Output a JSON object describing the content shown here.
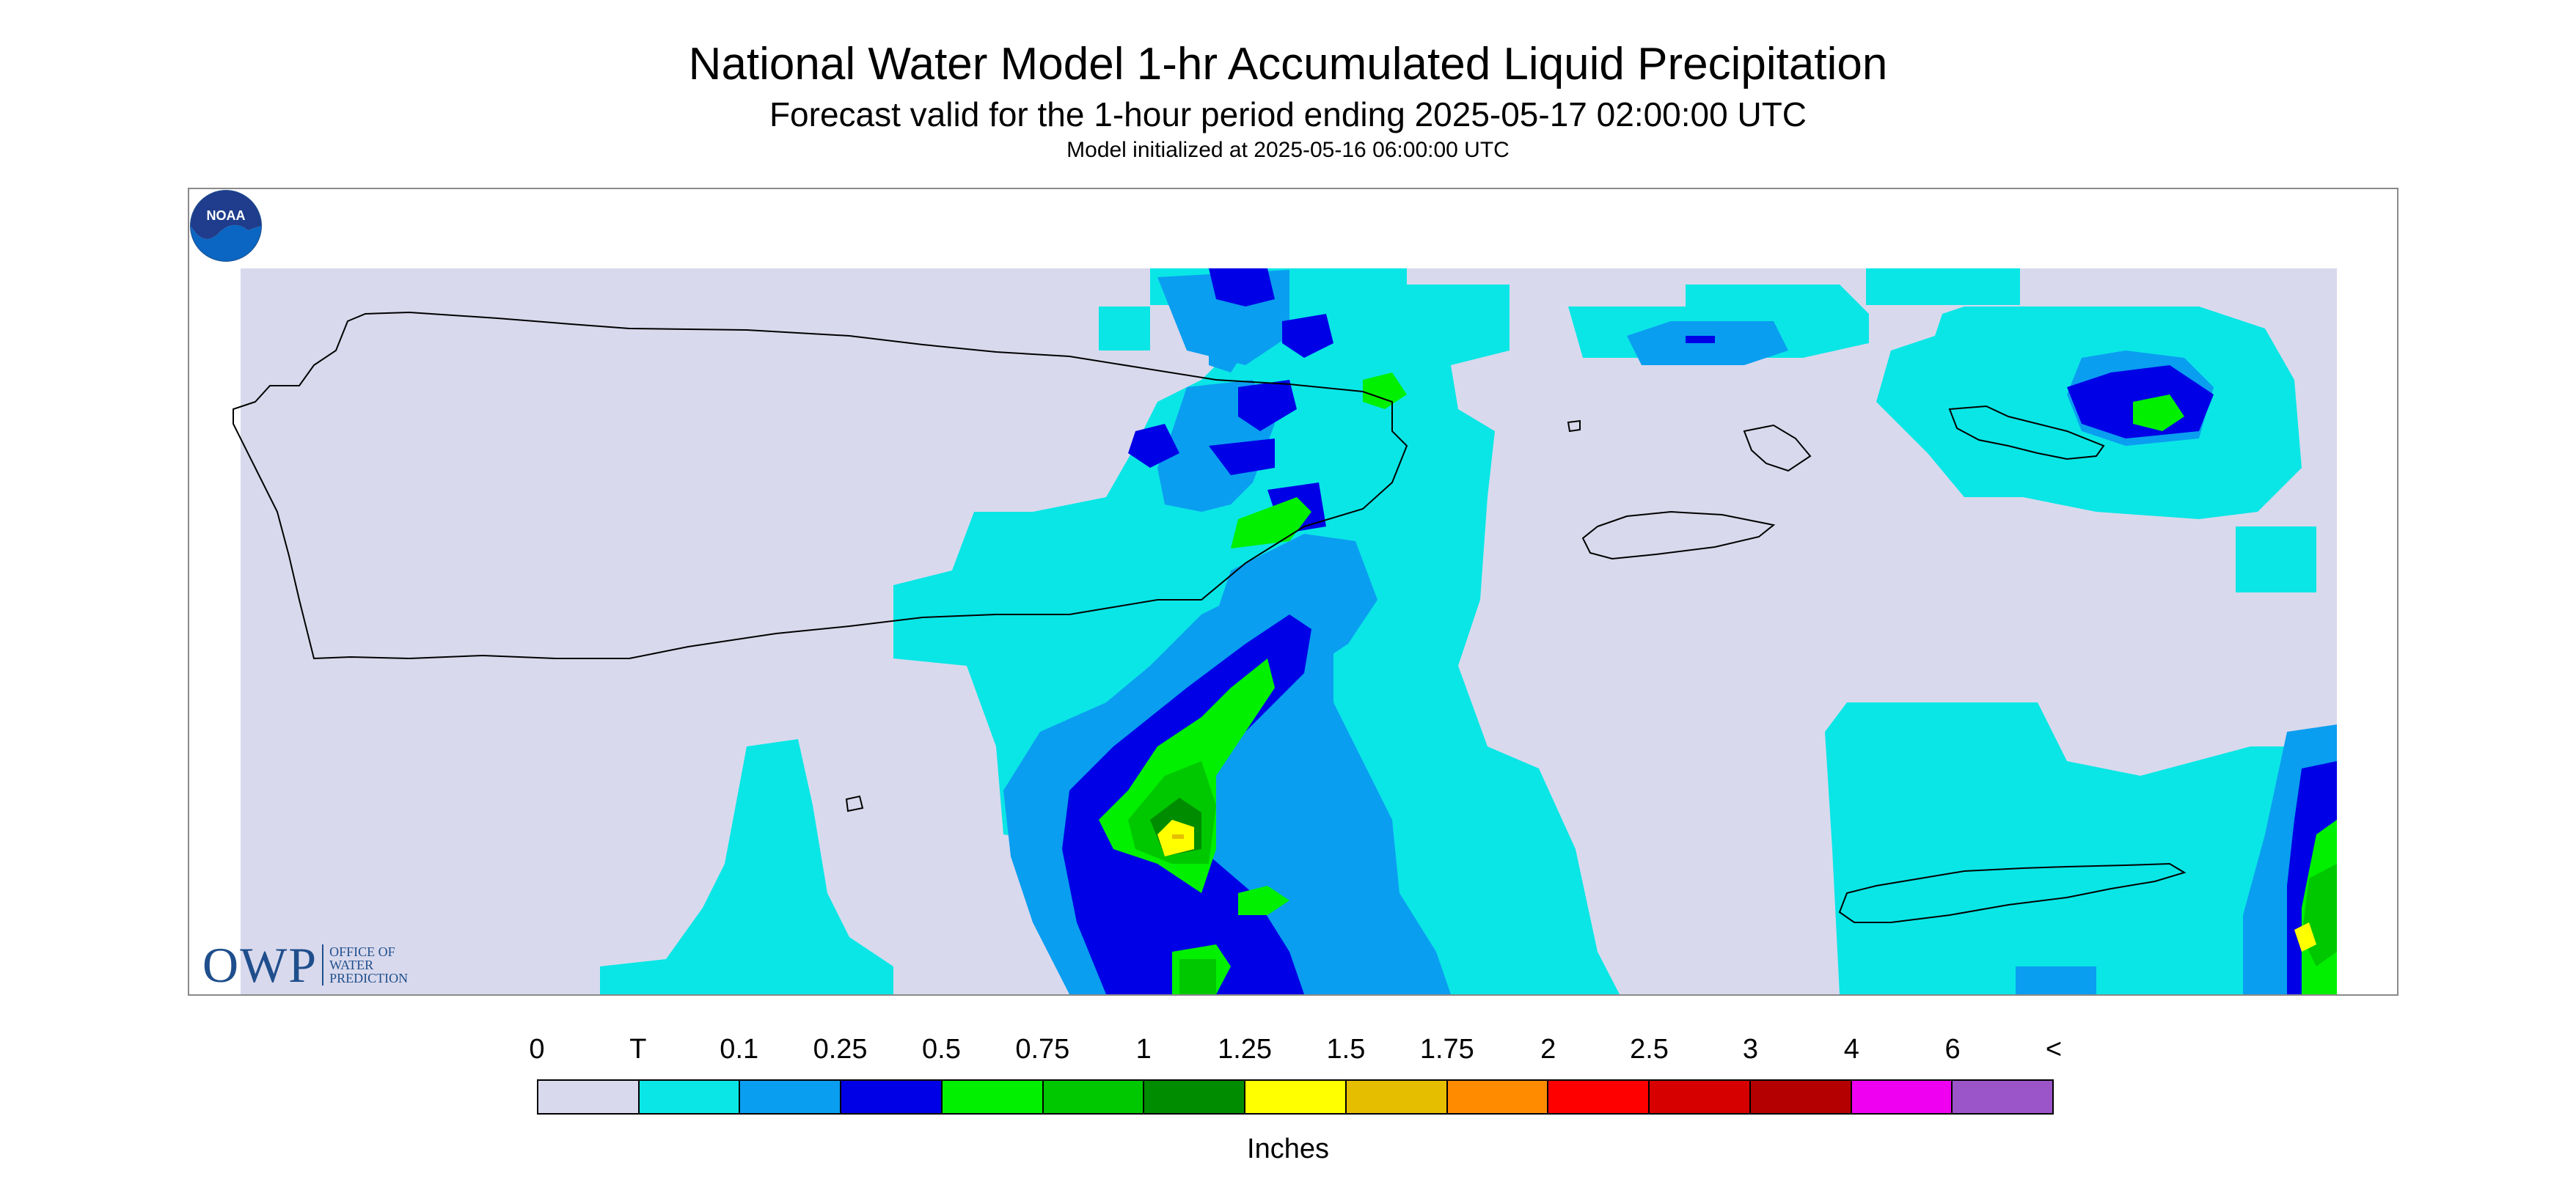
{
  "title": "National Water Model 1-hr Accumulated Liquid Precipitation",
  "subtitle": "Forecast valid for the 1-hour period ending 2025-05-17 02:00:00 UTC",
  "initialized": "Model initialized at 2025-05-16 06:00:00 UTC",
  "logo": {
    "owp_text": "OWP",
    "owp_office_lines": [
      "Office of",
      "Water",
      "Prediction"
    ],
    "noaa_text": "NOAA",
    "noaa_icon": "noaa-seal-icon"
  },
  "legend": {
    "labels": [
      "0",
      "T",
      "0.1",
      "0.25",
      "0.5",
      "0.75",
      "1",
      "1.25",
      "1.5",
      "1.75",
      "2",
      "2.5",
      "3",
      "4",
      "6",
      "<"
    ],
    "colors": [
      "#d9d9ed",
      "#0ae6e6",
      "#0a9ef0",
      "#0000e6",
      "#00f000",
      "#00c800",
      "#008c00",
      "#ffff00",
      "#e6be00",
      "#ff8c00",
      "#ff0000",
      "#d70000",
      "#b40000",
      "#f000f0",
      "#9b55c8"
    ],
    "units": "Inches"
  },
  "map": {
    "no_data_color": "#d9d9ed",
    "background_color": "#ffffff",
    "coastline_color": "#000000"
  }
}
